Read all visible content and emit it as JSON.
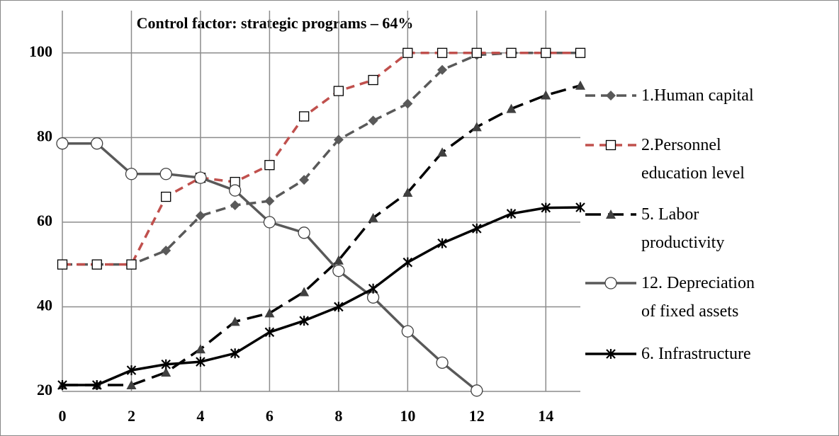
{
  "chart_data": {
    "type": "line",
    "title": "Control factor: strategic programs – 64%",
    "x": [
      0,
      1,
      2,
      3,
      4,
      5,
      6,
      7,
      8,
      9,
      10,
      11,
      12,
      13,
      14,
      15
    ],
    "xlim": [
      0,
      15
    ],
    "xticks": [
      0,
      2,
      4,
      6,
      8,
      10,
      12,
      14
    ],
    "ylim": [
      20,
      110
    ],
    "yticks": [
      20,
      40,
      60,
      80,
      100
    ],
    "grid": true,
    "legend": "right",
    "series": [
      {
        "name": "1.Human capital",
        "color": "#595959",
        "dash": "14,8",
        "marker": "diamond",
        "values": [
          50,
          50,
          50,
          53.3,
          61.5,
          64,
          65,
          70,
          79.5,
          84,
          88,
          96,
          99.5,
          100,
          100,
          100
        ]
      },
      {
        "name": "2.Personnel education level",
        "color": "#c0504d",
        "dash": "12,8",
        "marker": "square",
        "values": [
          50,
          50,
          50,
          66,
          70.5,
          69.5,
          73.5,
          85,
          91,
          93.6,
          100,
          100,
          100,
          100,
          100,
          100
        ]
      },
      {
        "name": "5. Labor productivity",
        "color": "#000000",
        "dash": "22,10",
        "marker": "triangle",
        "values": [
          21.5,
          21.5,
          21.5,
          24.5,
          30,
          36.5,
          38.5,
          43.5,
          51,
          61,
          67,
          76.5,
          82.5,
          86.8,
          90,
          92.3
        ]
      },
      {
        "name": "12. Depreciation of fixed assets",
        "color": "#595959",
        "dash": null,
        "marker": "circle",
        "values": [
          78.6,
          78.6,
          71.4,
          71.4,
          70.5,
          67.5,
          60,
          57.5,
          48.5,
          42.2,
          34.2,
          26.8,
          20.2,
          null,
          null,
          null
        ]
      },
      {
        "name": "6. Infrastructure",
        "color": "#000000",
        "dash": null,
        "marker": "star",
        "values": [
          21.5,
          21.5,
          25,
          26.4,
          27,
          29,
          34,
          36.7,
          40,
          44.3,
          50.5,
          55,
          58.5,
          62,
          63.4,
          63.5
        ]
      }
    ]
  }
}
